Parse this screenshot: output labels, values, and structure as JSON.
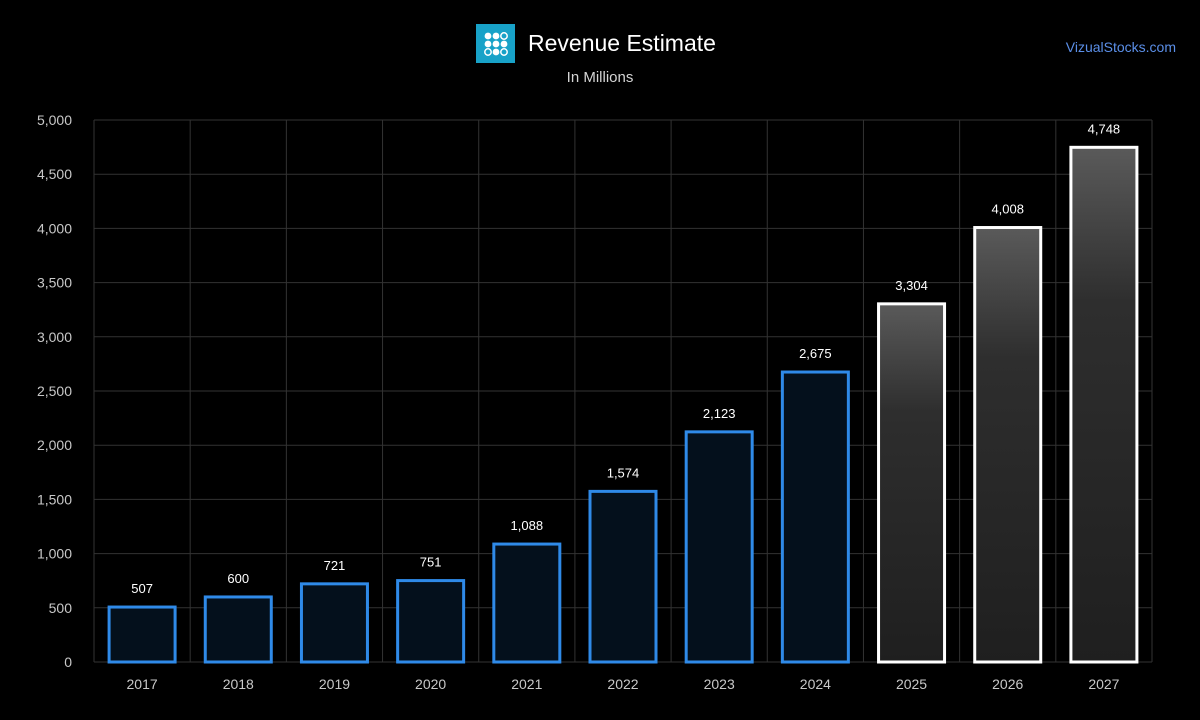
{
  "header": {
    "title": "Revenue Estimate",
    "subtitle": "In Millions",
    "brand": "VizualStocks.com",
    "logo_icon": "dots-grid-logo-icon"
  },
  "colors": {
    "background": "#000000",
    "actual_stroke": "#2f8ae8",
    "actual_fill": "#04101c",
    "estimate_stroke": "#ffffff",
    "estimate_fill": "#222222",
    "grid": "#333333",
    "tick_label": "#c8c8c8",
    "brand_link": "#5b8fe8",
    "logo_bg": "#18a2c8"
  },
  "chart_data": {
    "type": "bar",
    "categories": [
      "2017",
      "2018",
      "2019",
      "2020",
      "2021",
      "2022",
      "2023",
      "2024",
      "2025",
      "2026",
      "2027"
    ],
    "series": [
      {
        "values": [
          507,
          600,
          721,
          751,
          1088,
          1574,
          2123,
          2675,
          3304,
          4008,
          4748
        ],
        "labels": [
          "507",
          "600",
          "721",
          "751",
          "1,088",
          "1,574",
          "2,123",
          "2,675",
          "3,304",
          "4,008",
          "4,748"
        ],
        "kind": [
          "actual",
          "actual",
          "actual",
          "actual",
          "actual",
          "actual",
          "actual",
          "actual",
          "estimate",
          "estimate",
          "estimate"
        ]
      }
    ],
    "title": "Revenue Estimate",
    "subtitle": "In Millions",
    "xlabel": "",
    "ylabel": "",
    "ylim": [
      0,
      5000
    ],
    "yticks": [
      0,
      500,
      1000,
      1500,
      2000,
      2500,
      3000,
      3500,
      4000,
      4500,
      5000
    ],
    "ytick_labels": [
      "0",
      "500",
      "1,000",
      "1,500",
      "2,000",
      "2,500",
      "3,000",
      "3,500",
      "4,000",
      "4,500",
      "5,000"
    ],
    "grid": true,
    "legend": "none"
  }
}
